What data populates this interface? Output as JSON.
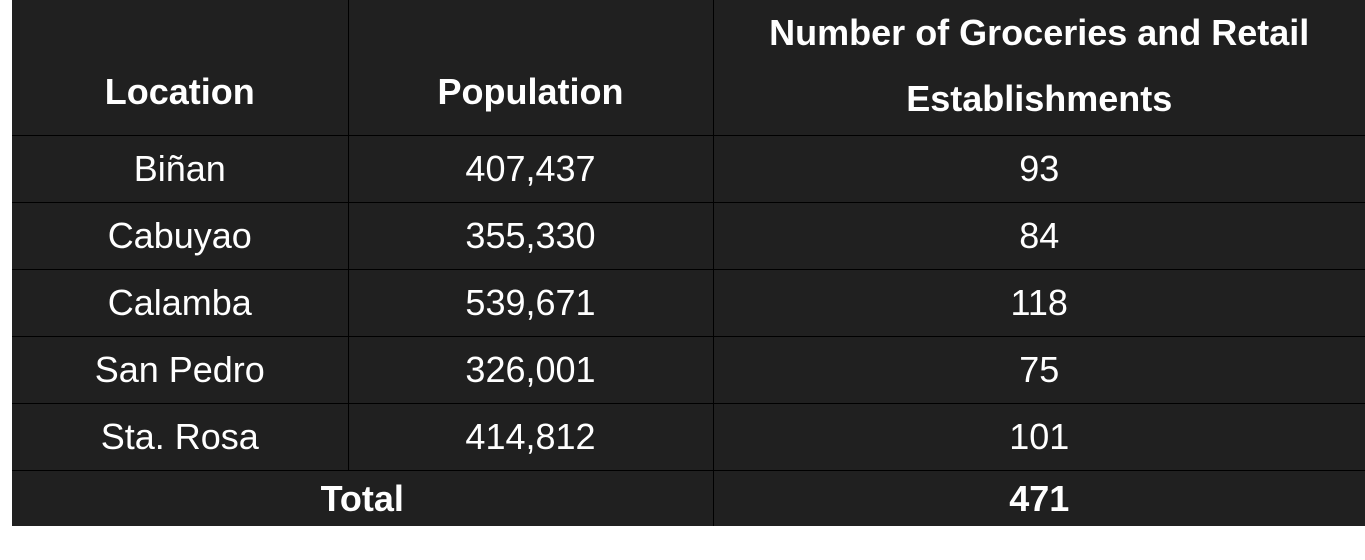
{
  "table": {
    "headers": {
      "location": "Location",
      "population": "Population",
      "establishments": "Number of Groceries and Retail Establishments"
    },
    "rows": [
      {
        "location": "Biñan",
        "population": "407,437",
        "establishments": "93"
      },
      {
        "location": "Cabuyao",
        "population": "355,330",
        "establishments": "84"
      },
      {
        "location": "Calamba",
        "population": "539,671",
        "establishments": "118"
      },
      {
        "location": "San Pedro",
        "population": "326,001",
        "establishments": "75"
      },
      {
        "location": "Sta. Rosa",
        "population": "414,812",
        "establishments": "101"
      }
    ],
    "total": {
      "label": "Total",
      "establishments": "471"
    }
  },
  "colors": {
    "background": "#202020",
    "text": "#ffffff",
    "grid": "#000000"
  }
}
